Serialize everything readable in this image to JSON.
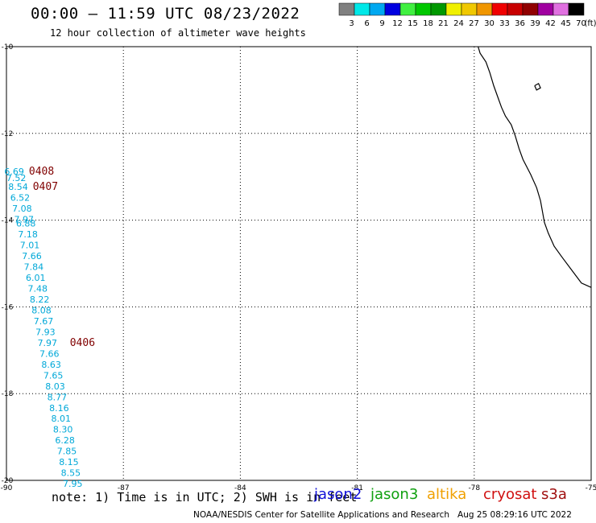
{
  "title": "00:00 – 11:59 UTC 08/23/2022",
  "subtitle": "12 hour collection of altimeter wave heights",
  "legend": {
    "unit": "(ft)",
    "bins": [
      {
        "label": "3",
        "color": "#808080"
      },
      {
        "label": "6",
        "color": "#00e8e8"
      },
      {
        "label": "9",
        "color": "#00a8f0"
      },
      {
        "label": "12",
        "color": "#0000e0"
      },
      {
        "label": "15",
        "color": "#40f040"
      },
      {
        "label": "18",
        "color": "#00c800"
      },
      {
        "label": "21",
        "color": "#009800"
      },
      {
        "label": "24",
        "color": "#f0f000"
      },
      {
        "label": "27",
        "color": "#f0c800"
      },
      {
        "label": "30",
        "color": "#f09600"
      },
      {
        "label": "33",
        "color": "#f00000"
      },
      {
        "label": "36",
        "color": "#c80000"
      },
      {
        "label": "39",
        "color": "#900000"
      },
      {
        "label": "42",
        "color": "#a000a0"
      },
      {
        "label": "45",
        "color": "#e070e0"
      },
      {
        "label": "70",
        "color": "#000000"
      }
    ]
  },
  "axes": {
    "lat_ticks": [
      "-10",
      "-12",
      "-14",
      "-16",
      "-18",
      "-20"
    ],
    "lon_ticks": [
      "-90",
      "-87",
      "-84",
      "-81",
      "-78",
      "-75"
    ],
    "lat_values": [
      -10,
      -12,
      -14,
      -16,
      -18,
      -20
    ],
    "lon_values": [
      -90,
      -87,
      -84,
      -81,
      -78,
      -75
    ],
    "lat_range": [
      -20,
      -10
    ],
    "lon_range": [
      -90,
      -75
    ]
  },
  "track": {
    "color": "#00a8d8",
    "points": [
      {
        "v": "6.69",
        "lon": -89.8,
        "lat": -12.95
      },
      {
        "v": "7.52",
        "lon": -89.75,
        "lat": -13.1
      },
      {
        "v": "8.54",
        "lon": -89.7,
        "lat": -13.3
      },
      {
        "v": "6.52",
        "lon": -89.65,
        "lat": -13.55
      },
      {
        "v": "7.08",
        "lon": -89.6,
        "lat": -13.8
      },
      {
        "v": "7.97",
        "lon": -89.55,
        "lat": -14.05
      },
      {
        "v": "6.88",
        "lon": -89.5,
        "lat": -14.15
      },
      {
        "v": "7.18",
        "lon": -89.45,
        "lat": -14.4
      },
      {
        "v": "7.01",
        "lon": -89.4,
        "lat": -14.65
      },
      {
        "v": "7.66",
        "lon": -89.35,
        "lat": -14.9
      },
      {
        "v": "7.84",
        "lon": -89.3,
        "lat": -15.15
      },
      {
        "v": "6.01",
        "lon": -89.25,
        "lat": -15.4
      },
      {
        "v": "7.48",
        "lon": -89.2,
        "lat": -15.65
      },
      {
        "v": "8.22",
        "lon": -89.15,
        "lat": -15.9
      },
      {
        "v": "8.08",
        "lon": -89.1,
        "lat": -16.15
      },
      {
        "v": "7.67",
        "lon": -89.05,
        "lat": -16.4
      },
      {
        "v": "7.93",
        "lon": -89.0,
        "lat": -16.65
      },
      {
        "v": "7.97",
        "lon": -88.95,
        "lat": -16.9
      },
      {
        "v": "7.66",
        "lon": -88.9,
        "lat": -17.15
      },
      {
        "v": "8.63",
        "lon": -88.85,
        "lat": -17.4
      },
      {
        "v": "7.65",
        "lon": -88.8,
        "lat": -17.65
      },
      {
        "v": "8.03",
        "lon": -88.75,
        "lat": -17.9
      },
      {
        "v": "8.77",
        "lon": -88.7,
        "lat": -18.15
      },
      {
        "v": "8.16",
        "lon": -88.65,
        "lat": -18.4
      },
      {
        "v": "8.01",
        "lon": -88.6,
        "lat": -18.65
      },
      {
        "v": "8.30",
        "lon": -88.55,
        "lat": -18.9
      },
      {
        "v": "6.28",
        "lon": -88.5,
        "lat": -19.15
      },
      {
        "v": "7.85",
        "lon": -88.45,
        "lat": -19.4
      },
      {
        "v": "8.15",
        "lon": -88.4,
        "lat": -19.65
      },
      {
        "v": "8.55",
        "lon": -88.35,
        "lat": -19.9
      },
      {
        "v": "7.95",
        "lon": -88.3,
        "lat": -20.15
      }
    ]
  },
  "time_labels": {
    "color": "#800000",
    "items": [
      {
        "t": "0408",
        "lon": -89.1,
        "lat": -12.95
      },
      {
        "t": "0407",
        "lon": -89.0,
        "lat": -13.3
      },
      {
        "t": "0406",
        "lon": -88.05,
        "lat": -16.9
      }
    ]
  },
  "coastline": [
    [
      -77.9,
      -10.0
    ],
    [
      -77.85,
      -10.15
    ],
    [
      -77.7,
      -10.35
    ],
    [
      -77.6,
      -10.6
    ],
    [
      -77.5,
      -10.9
    ],
    [
      -77.4,
      -11.15
    ],
    [
      -77.3,
      -11.4
    ],
    [
      -77.2,
      -11.6
    ],
    [
      -77.05,
      -11.8
    ],
    [
      -76.95,
      -12.05
    ],
    [
      -76.85,
      -12.35
    ],
    [
      -76.75,
      -12.6
    ],
    [
      -76.55,
      -12.95
    ],
    [
      -76.4,
      -13.25
    ],
    [
      -76.3,
      -13.55
    ],
    [
      -76.25,
      -13.8
    ],
    [
      -76.2,
      -14.05
    ],
    [
      -76.1,
      -14.3
    ],
    [
      -75.95,
      -14.6
    ],
    [
      -75.75,
      -14.85
    ],
    [
      -75.5,
      -15.15
    ],
    [
      -75.25,
      -15.45
    ],
    [
      -75.0,
      -15.55
    ]
  ],
  "island": [
    [
      -76.45,
      -10.9
    ],
    [
      -76.35,
      -10.85
    ],
    [
      -76.3,
      -10.95
    ],
    [
      -76.4,
      -11.0
    ],
    [
      -76.45,
      -10.9
    ]
  ],
  "notes": "note: 1) Time is in UTC; 2) SWH is in feet",
  "satellites": [
    "jason2",
    "jason3",
    "altika",
    "cryosat",
    "s3a"
  ],
  "footer": "NOAA/NESDIS Center for Satellite Applications and Research   Aug 25 08:29:16 UTC 2022"
}
